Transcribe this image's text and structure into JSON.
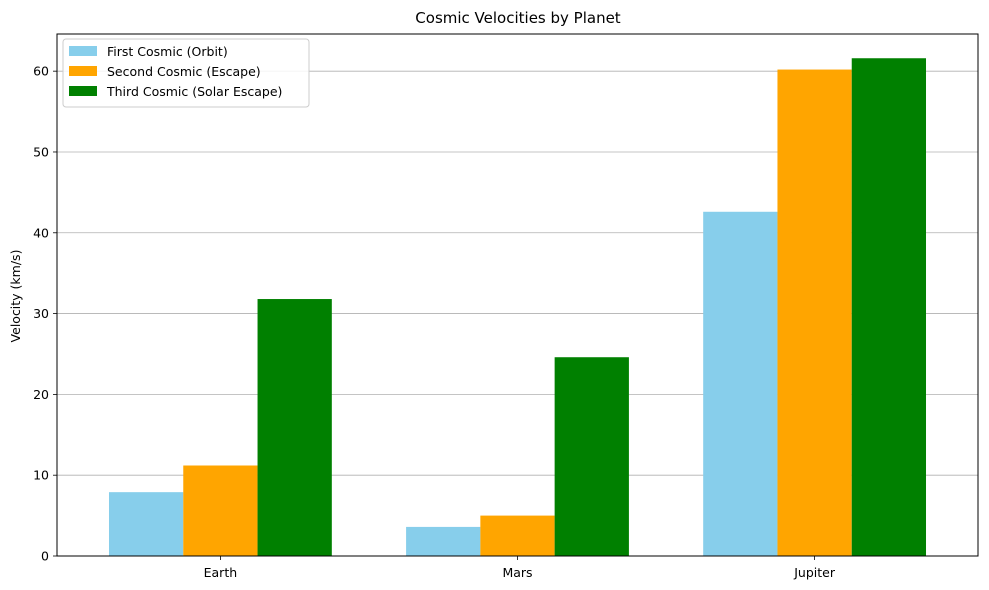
{
  "chart_data": {
    "type": "bar",
    "title": "Cosmic Velocities by Planet",
    "xlabel": "",
    "ylabel": "Velocity (km/s)",
    "categories": [
      "Earth",
      "Mars",
      "Jupiter"
    ],
    "series": [
      {
        "name": "First Cosmic (Orbit)",
        "color": "#87ceeb",
        "values": [
          7.9,
          3.6,
          42.6
        ]
      },
      {
        "name": "Second Cosmic (Escape)",
        "color": "#ffa500",
        "values": [
          11.2,
          5.0,
          60.2
        ]
      },
      {
        "name": "Third Cosmic (Solar Escape)",
        "color": "#008000",
        "values": [
          31.8,
          24.6,
          61.6
        ]
      }
    ],
    "ylim": [
      0,
      64.6
    ],
    "yticks": [
      0,
      10,
      20,
      30,
      40,
      50,
      60
    ],
    "grid": "y",
    "legend_position": "top-left"
  }
}
